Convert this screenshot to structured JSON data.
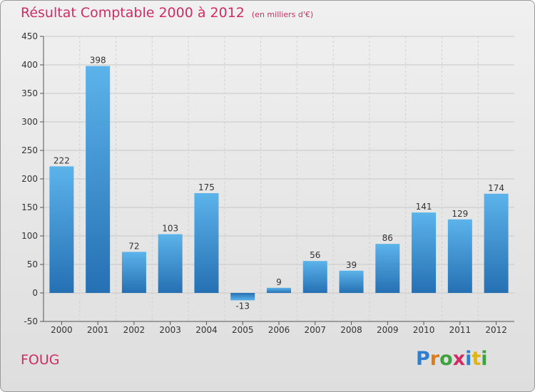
{
  "title": "Résultat Comptable 2000 à 2012",
  "unit_label": "(en milliers d'€)",
  "commune": "FOUG",
  "brand": {
    "letters": [
      "P",
      "r",
      "o",
      "x",
      "i",
      "t",
      "i"
    ],
    "colors": [
      "#2f7fd0",
      "#e07b1c",
      "#3ea33e",
      "#d02c64",
      "#2f7fd0",
      "#e0b51c",
      "#3ea33e"
    ]
  },
  "colors": {
    "title": "#d02c64",
    "bar_light": "#5cb3ea",
    "bar_dark": "#2570b3",
    "grid": "#c8c8c8"
  },
  "chart_data": {
    "type": "bar",
    "title": "Résultat Comptable 2000 à 2012",
    "xlabel": "",
    "ylabel": "",
    "categories": [
      "2000",
      "2001",
      "2002",
      "2003",
      "2004",
      "2005",
      "2006",
      "2007",
      "2008",
      "2009",
      "2010",
      "2011",
      "2012"
    ],
    "values": [
      222,
      398,
      72,
      103,
      175,
      -13,
      9,
      56,
      39,
      86,
      141,
      129,
      174
    ],
    "ylim": [
      -50,
      450
    ],
    "yticks": [
      -50,
      0,
      50,
      100,
      150,
      200,
      250,
      300,
      350,
      400,
      450
    ],
    "grid": true
  }
}
